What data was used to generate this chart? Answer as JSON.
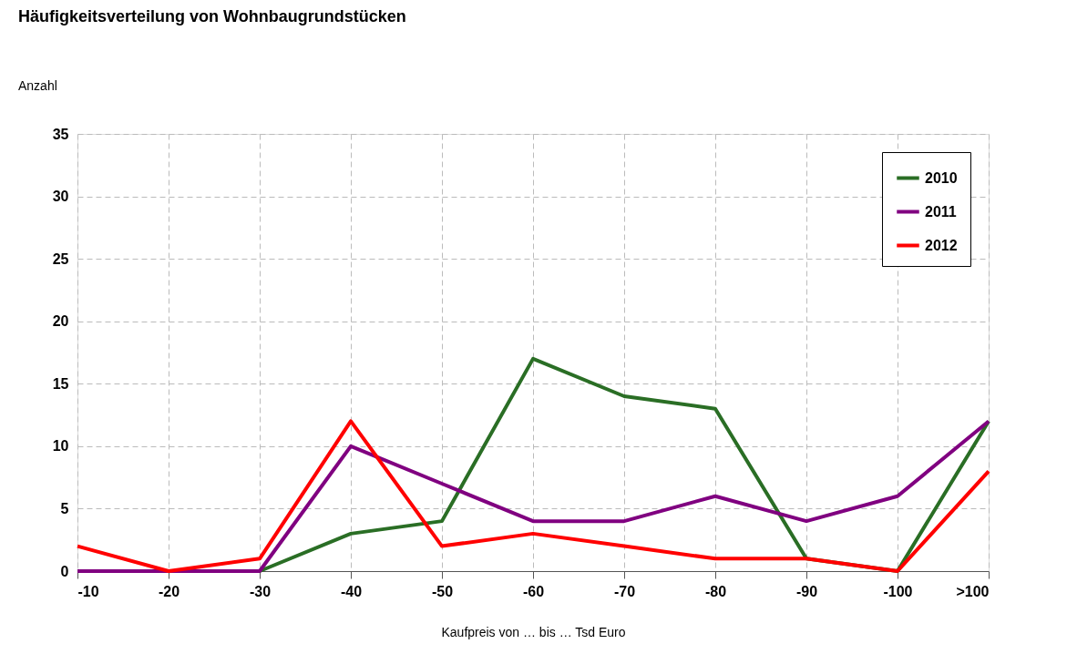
{
  "chart_data": {
    "type": "line",
    "title": "Häufigkeitsverteilung von Wohnbaugrundstücken",
    "xlabel": "Kaufpreis von … bis … Tsd Euro",
    "ylabel": "Anzahl",
    "categories": [
      "-10",
      "-20",
      "-30",
      "-40",
      "-50",
      "-60",
      "-70",
      "-80",
      "-90",
      "-100",
      ">100"
    ],
    "series": [
      {
        "name": "2010",
        "color": "#2a6e25",
        "values": [
          0,
          0,
          0,
          3,
          4,
          17,
          14,
          13,
          1,
          0,
          12
        ]
      },
      {
        "name": "2011",
        "color": "#800080",
        "values": [
          0,
          0,
          0,
          10,
          7,
          4,
          4,
          6,
          4,
          6,
          12
        ]
      },
      {
        "name": "2012",
        "color": "#ff0000",
        "values": [
          2,
          0,
          1,
          12,
          2,
          3,
          2,
          1,
          1,
          0,
          8
        ]
      }
    ],
    "ylim": [
      0,
      35
    ],
    "yticks": [
      0,
      5,
      10,
      15,
      20,
      25,
      30,
      35
    ],
    "grid": true,
    "legend": "top right",
    "line_style": "solid"
  }
}
